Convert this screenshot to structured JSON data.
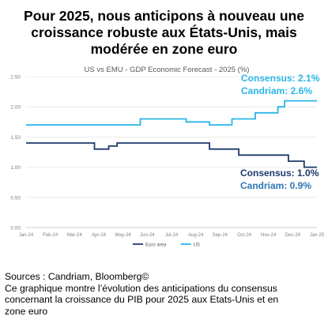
{
  "headline": {
    "line1": "Pour 2025, nous anticipons à nouveau une",
    "line2": "croissance robuste aux États-Unis, mais",
    "line3": "modérée en zone euro"
  },
  "footer": {
    "sources": "Sources : Candriam, Bloomberg©",
    "note_line1": "Ce graphique montre l’évolution des anticipations du consensus",
    "note_line2": "concernant la croissance du PIB pour 2025 aux Etats-Unis et en",
    "note_line3": "zone euro"
  },
  "annotations": {
    "us_consensus": "Consensus: 2.1%",
    "us_candriam": "Candriam: 2.6%",
    "emu_consensus": "Consensus: 1.0%",
    "emu_candriam": "Candriam: 0.9%"
  },
  "colors": {
    "us": "#29b6e6",
    "euro": "#1b3a6b",
    "grid": "#e6e6e6",
    "axis_text": "#7f7f7f"
  },
  "chart_data": {
    "type": "line",
    "title": "US vs EMU - GDP Economic Forecast - 2025 (%)",
    "xlabel": "",
    "ylabel": "",
    "x_ticks": [
      "Jan-24",
      "Feb-24",
      "Mar-24",
      "Apr-24",
      "May-24",
      "Jun-24",
      "Jul-24",
      "Aug-24",
      "Sep-24",
      "Oct-24",
      "Nov-24",
      "Dec-24",
      "Jan-25"
    ],
    "y_ticks": [
      "0.00",
      "0.50",
      "1.00",
      "1.50",
      "2.00",
      "2.50"
    ],
    "ylim": [
      0,
      2.5
    ],
    "grid": true,
    "legend_position": "bottom",
    "series": [
      {
        "name": "Euro area",
        "color": "#1b3a6b",
        "points": [
          [
            "2024-01-01",
            1.4
          ],
          [
            "2024-04-01",
            1.4
          ],
          [
            "2024-04-01",
            1.3
          ],
          [
            "2024-04-20",
            1.3
          ],
          [
            "2024-04-20",
            1.35
          ],
          [
            "2024-05-01",
            1.35
          ],
          [
            "2024-05-01",
            1.4
          ],
          [
            "2024-09-01",
            1.4
          ],
          [
            "2024-09-01",
            1.3
          ],
          [
            "2024-10-10",
            1.3
          ],
          [
            "2024-10-10",
            1.2
          ],
          [
            "2024-12-15",
            1.2
          ],
          [
            "2024-12-15",
            1.1
          ],
          [
            "2025-01-05",
            1.1
          ],
          [
            "2025-01-05",
            1.0
          ],
          [
            "2025-01-22",
            1.0
          ]
        ]
      },
      {
        "name": "US",
        "color": "#29b6e6",
        "points": [
          [
            "2024-01-01",
            1.7
          ],
          [
            "2024-06-01",
            1.7
          ],
          [
            "2024-06-01",
            1.8
          ],
          [
            "2024-08-01",
            1.8
          ],
          [
            "2024-08-01",
            1.75
          ],
          [
            "2024-09-01",
            1.75
          ],
          [
            "2024-09-01",
            1.7
          ],
          [
            "2024-10-01",
            1.7
          ],
          [
            "2024-10-01",
            1.8
          ],
          [
            "2024-11-01",
            1.8
          ],
          [
            "2024-11-01",
            1.9
          ],
          [
            "2024-12-01",
            1.9
          ],
          [
            "2024-12-01",
            2.0
          ],
          [
            "2024-12-10",
            2.0
          ],
          [
            "2024-12-10",
            2.1
          ],
          [
            "2025-01-22",
            2.1
          ]
        ]
      }
    ]
  }
}
